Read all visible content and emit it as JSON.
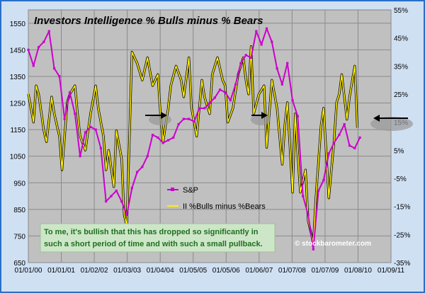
{
  "chart_data": {
    "type": "line",
    "title": "Investors Intelligence % Bulls minus % Bears",
    "x_tick_labels": [
      "01/01/00",
      "01/01/01",
      "01/02/02",
      "01/03/03",
      "01/04/04",
      "01/05/05",
      "01/05/06",
      "01/06/07",
      "01/07/08",
      "01/07/09",
      "01/08/10",
      "01/09/11"
    ],
    "left_axis": {
      "ticks": [
        650,
        750,
        850,
        950,
        1050,
        1150,
        1250,
        1350,
        1450,
        1550
      ],
      "range": [
        650,
        1600
      ]
    },
    "right_axis": {
      "ticks": [
        "-35%",
        "-25%",
        "-15%",
        "-5%",
        "5%",
        "15%",
        "25%",
        "35%",
        "45%",
        "55%"
      ],
      "range": [
        -35,
        55
      ]
    },
    "grid": true,
    "legend_position": "lower-middle",
    "series": [
      {
        "name": "S&P",
        "axis": "left",
        "color": "#cc00cc",
        "x": [
          "2000-01",
          "2000-03",
          "2000-05",
          "2000-07",
          "2000-09",
          "2000-11",
          "2001-01",
          "2001-03",
          "2001-05",
          "2001-07",
          "2001-09",
          "2001-11",
          "2002-01",
          "2002-03",
          "2002-05",
          "2002-07",
          "2002-09",
          "2002-11",
          "2003-01",
          "2003-03",
          "2003-05",
          "2003-07",
          "2003-09",
          "2003-11",
          "2004-01",
          "2004-03",
          "2004-05",
          "2004-07",
          "2004-09",
          "2004-11",
          "2005-01",
          "2005-03",
          "2005-05",
          "2005-07",
          "2005-09",
          "2005-11",
          "2006-01",
          "2006-03",
          "2006-05",
          "2006-07",
          "2006-09",
          "2006-11",
          "2007-01",
          "2007-03",
          "2007-05",
          "2007-07",
          "2007-09",
          "2007-11",
          "2008-01",
          "2008-03",
          "2008-05",
          "2008-07",
          "2008-09",
          "2008-11",
          "2009-01",
          "2009-03",
          "2009-05",
          "2009-07",
          "2009-09",
          "2009-11",
          "2010-01",
          "2010-03",
          "2010-05",
          "2010-07",
          "2010-09"
        ],
        "values": [
          1450,
          1390,
          1460,
          1480,
          1520,
          1380,
          1350,
          1190,
          1290,
          1210,
          1050,
          1140,
          1160,
          1150,
          1080,
          880,
          900,
          920,
          880,
          830,
          930,
          990,
          1010,
          1050,
          1130,
          1120,
          1100,
          1110,
          1120,
          1170,
          1190,
          1190,
          1180,
          1230,
          1230,
          1250,
          1270,
          1300,
          1290,
          1260,
          1320,
          1400,
          1430,
          1420,
          1520,
          1470,
          1530,
          1480,
          1380,
          1320,
          1400,
          1260,
          1200,
          900,
          830,
          700,
          920,
          960,
          1060,
          1100,
          1130,
          1170,
          1090,
          1080,
          1120
        ]
      },
      {
        "name": "II %Bulls minus %Bears",
        "axis": "right",
        "color": "#ffee00",
        "x": [
          "2000-01",
          "2000-02",
          "2000-03",
          "2000-04",
          "2000-05",
          "2000-07",
          "2000-08",
          "2000-10",
          "2000-11",
          "2001-01",
          "2001-02",
          "2001-04",
          "2001-05",
          "2001-07",
          "2001-08",
          "2001-09",
          "2001-11",
          "2002-01",
          "2002-03",
          "2002-04",
          "2002-06",
          "2002-07",
          "2002-08",
          "2002-10",
          "2002-11",
          "2003-01",
          "2003-02",
          "2003-03",
          "2003-04",
          "2003-05",
          "2003-07",
          "2003-09",
          "2003-11",
          "2004-01",
          "2004-03",
          "2004-04",
          "2004-05",
          "2004-07",
          "2004-08",
          "2004-10",
          "2004-12",
          "2005-01",
          "2005-03",
          "2005-04",
          "2005-06",
          "2005-08",
          "2005-09",
          "2005-11",
          "2005-12",
          "2006-02",
          "2006-04",
          "2006-05",
          "2006-06",
          "2006-08",
          "2006-10",
          "2006-12",
          "2007-01",
          "2007-02",
          "2007-03",
          "2007-04",
          "2007-06",
          "2007-08",
          "2007-09",
          "2007-11",
          "2008-01",
          "2008-03",
          "2008-04",
          "2008-05",
          "2008-07",
          "2008-08",
          "2008-10",
          "2008-12",
          "2009-01",
          "2009-03",
          "2009-04",
          "2009-06",
          "2009-07",
          "2009-09",
          "2009-11",
          "2009-12",
          "2010-01",
          "2010-02",
          "2010-04",
          "2010-05",
          "2010-07",
          "2010-08"
        ],
        "values": [
          25,
          20,
          15,
          28,
          25,
          12,
          8,
          24,
          18,
          10,
          -2,
          22,
          25,
          28,
          18,
          10,
          5,
          18,
          28,
          20,
          10,
          -2,
          5,
          -8,
          12,
          2,
          -18,
          -22,
          8,
          40,
          36,
          30,
          38,
          28,
          32,
          18,
          8,
          20,
          28,
          35,
          30,
          24,
          38,
          20,
          10,
          30,
          24,
          18,
          32,
          38,
          30,
          28,
          15,
          20,
          32,
          38,
          30,
          25,
          42,
          18,
          25,
          28,
          6,
          30,
          20,
          0,
          14,
          22,
          -10,
          18,
          -10,
          -2,
          -20,
          -28,
          -12,
          14,
          20,
          -12,
          8,
          22,
          25,
          32,
          16,
          24,
          35,
          13
        ]
      }
    ]
  },
  "legend": {
    "sp_label": "S&P",
    "ii_label": "II %Bulls minus %Bears"
  },
  "annotation": {
    "line1": "To me, it's bullish that this has dropped so significantly in",
    "line2": "such a short period of time and with such a small pullback."
  },
  "watermark": "© stockbarometer.com",
  "colors": {
    "frame_border": "#2a6fc9",
    "frame_bg": "#cfe0f3",
    "plot_bg": "#c0c0c0",
    "note_box": "#cde6c8"
  }
}
